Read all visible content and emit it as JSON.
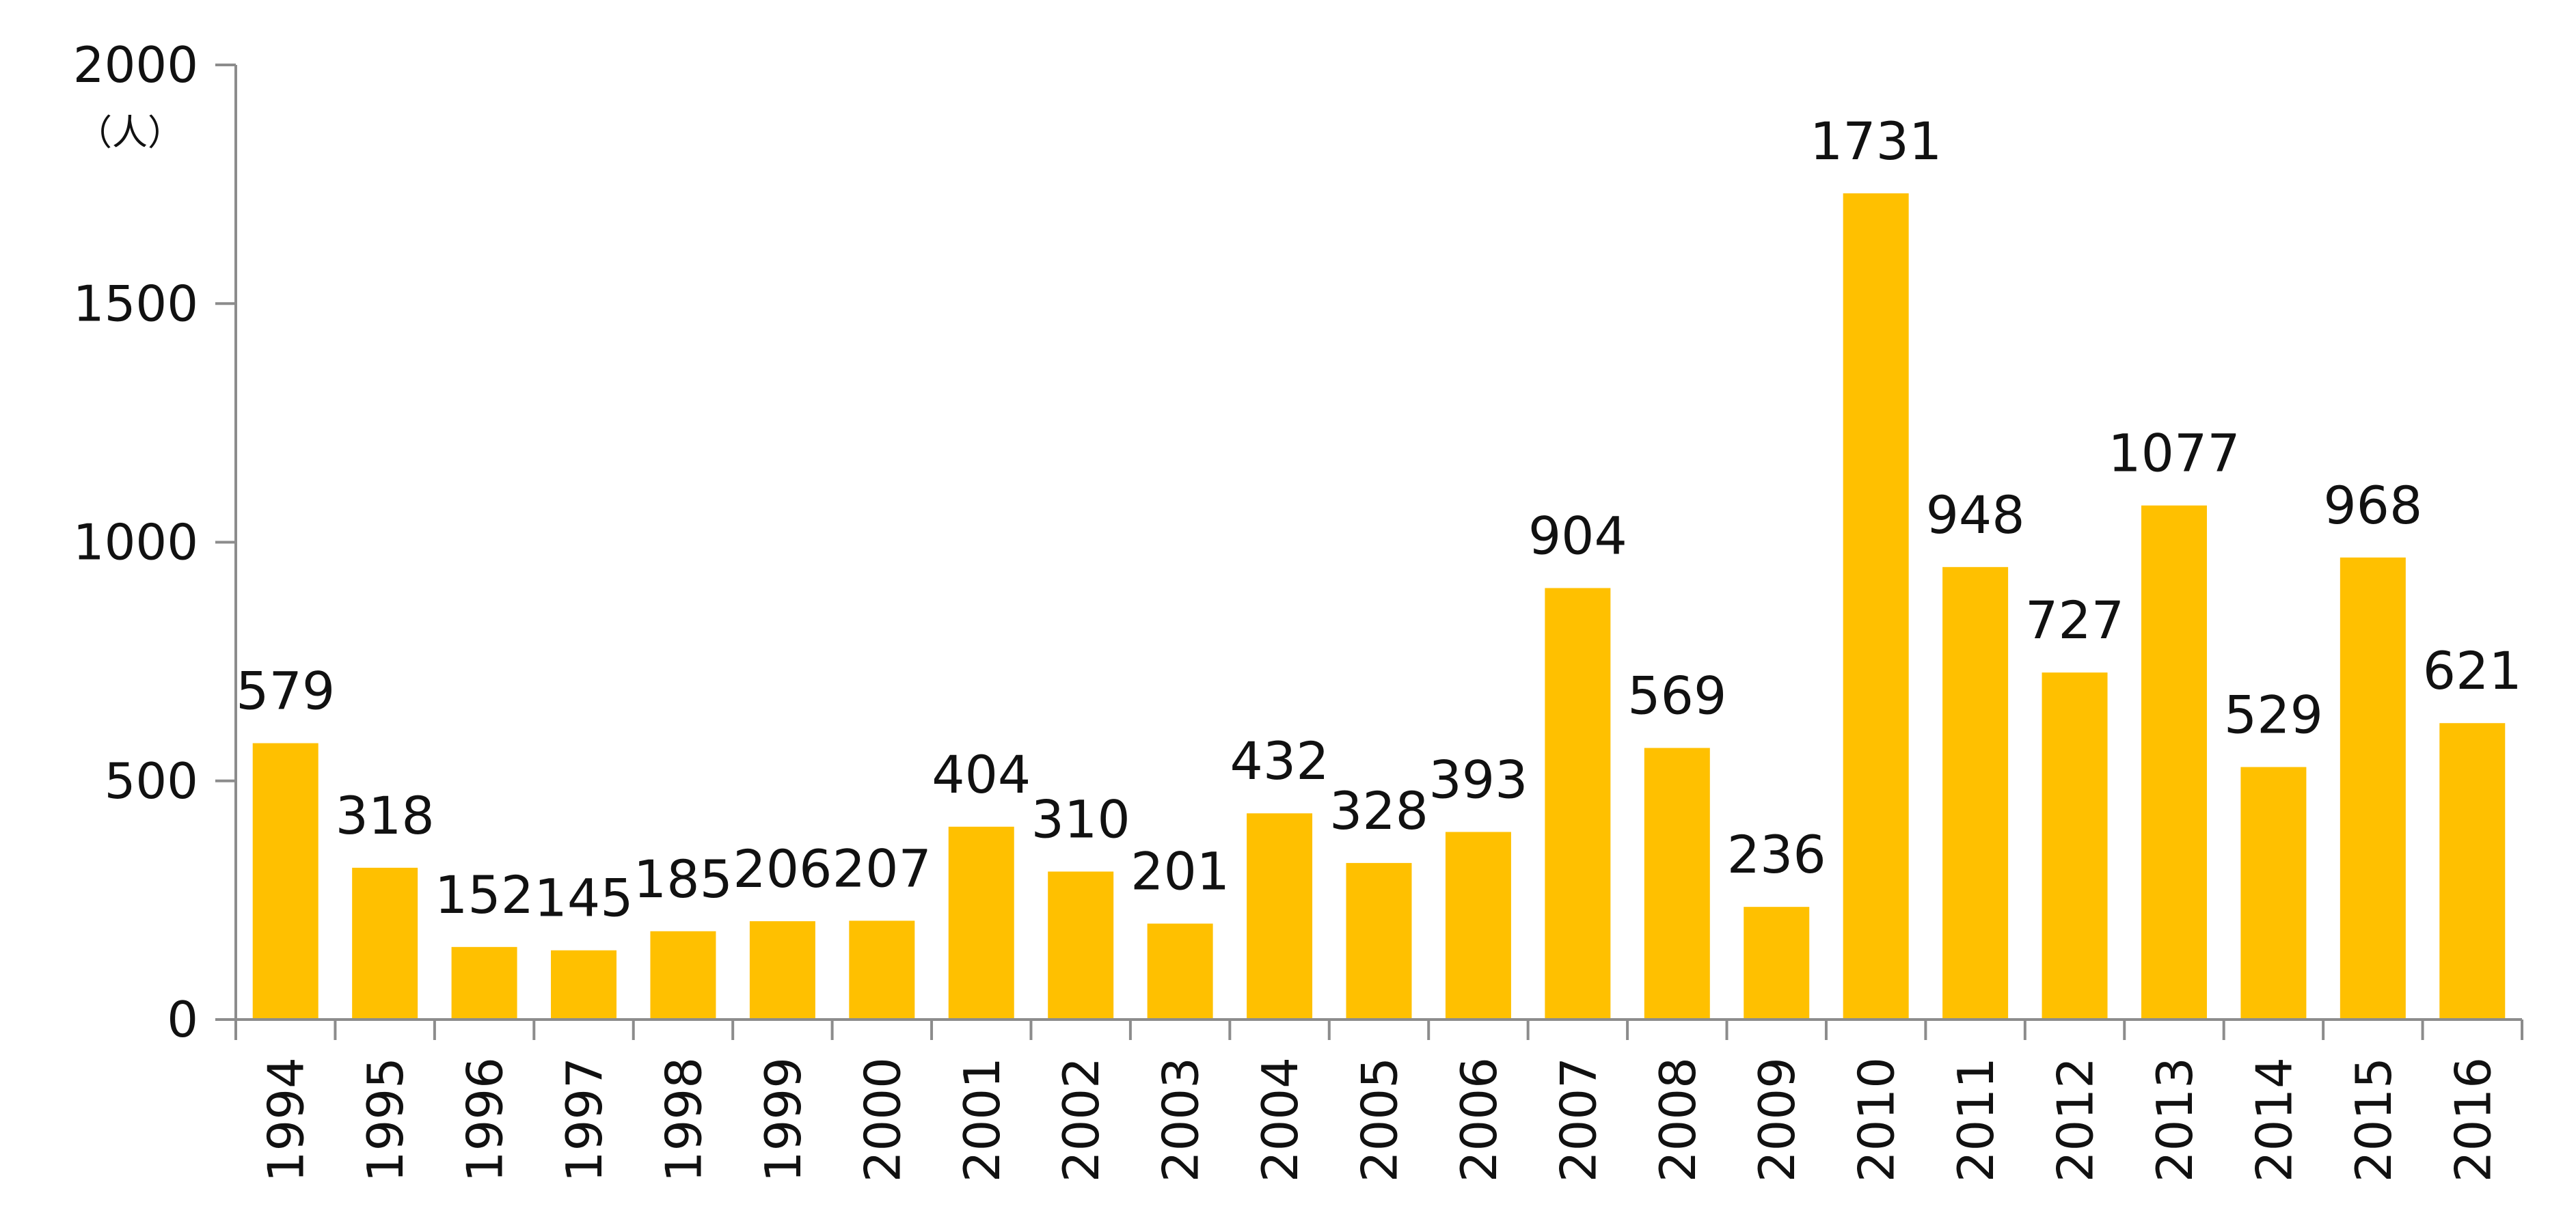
{
  "chart_data": {
    "type": "bar",
    "categories": [
      "1994",
      "1995",
      "1996",
      "1997",
      "1998",
      "1999",
      "2000",
      "2001",
      "2002",
      "2003",
      "2004",
      "2005",
      "2006",
      "2007",
      "2008",
      "2009",
      "2010",
      "2011",
      "2012",
      "2013",
      "2014",
      "2015",
      "2016"
    ],
    "values": [
      579,
      318,
      152,
      145,
      185,
      206,
      207,
      404,
      310,
      201,
      432,
      328,
      393,
      904,
      569,
      236,
      1731,
      948,
      727,
      1077,
      529,
      968,
      621
    ],
    "data_labels": [
      "579",
      "318",
      "152",
      "145",
      "185",
      "206",
      "207",
      "404",
      "310",
      "201",
      "432",
      "328",
      "393",
      "904",
      "569",
      "236",
      "1731",
      "948",
      "727",
      "1077",
      "529",
      "968",
      "621"
    ],
    "ylim": [
      0,
      2000
    ],
    "yticks": [
      0,
      500,
      1000,
      1500,
      2000
    ],
    "ytick_labels": [
      "0",
      "500",
      "1000",
      "1500",
      "2000"
    ],
    "y_unit": "（人）",
    "title": "",
    "xlabel": "",
    "ylabel": "",
    "grid": false,
    "legend": "none",
    "bar_color": "#FFC000"
  }
}
